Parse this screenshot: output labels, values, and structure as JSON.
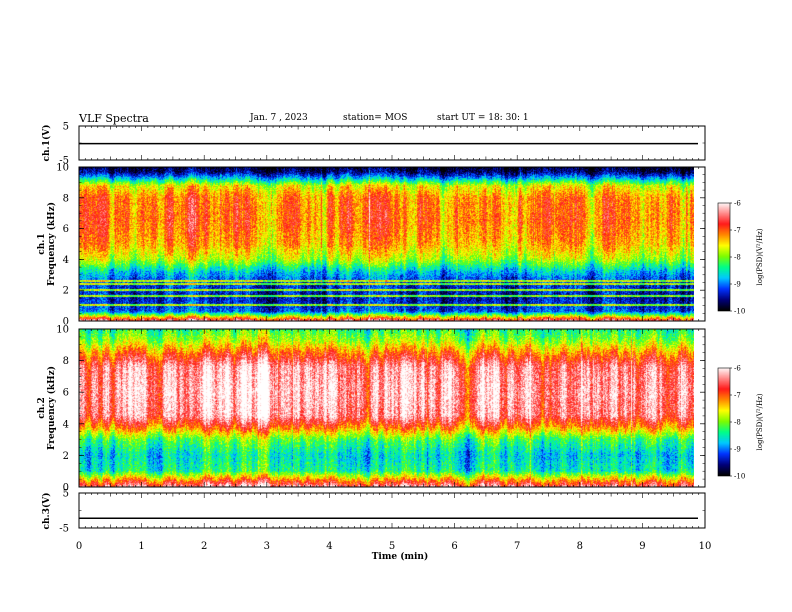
{
  "header": {
    "title": "VLF Spectra",
    "date": "Jan. 7 , 2023",
    "station": "station= MOS",
    "start_ut": "start UT =  18: 30: 1"
  },
  "colors": {
    "spectrum": [
      "#000000",
      "#00007a",
      "#0033ff",
      "#00c8ff",
      "#00ff88",
      "#7cfc00",
      "#ffff00",
      "#ff8800",
      "#ff1a1a",
      "#ff8c8c",
      "#ffffff"
    ]
  },
  "chart_data": [
    {
      "type": "line",
      "panel": "ch1-voltage",
      "ylabel": "ch.1(V)",
      "ylim": [
        -5,
        5
      ],
      "yticks": [
        "5",
        "-5"
      ],
      "x": [
        0,
        10
      ],
      "series": [
        {
          "values": [
            -0.2,
            -0.2
          ]
        }
      ]
    },
    {
      "type": "heatmap",
      "panel": "ch1-spectrogram",
      "ylabel": "ch.1  Frequency (kHz)",
      "ylim": [
        0,
        10
      ],
      "yticks": [
        "0",
        "2",
        "4",
        "6",
        "8",
        "10"
      ],
      "xlim": [
        0,
        9.83
      ],
      "colorbar": {
        "label": "log(PSD)(V²/Hz)",
        "range": [
          -10,
          -6
        ],
        "ticks": [
          "-6",
          "-7",
          "-8",
          "-9",
          "-10"
        ]
      },
      "frequency_profile": [
        {
          "f": 0.0,
          "level": 0.9
        },
        {
          "f": 0.3,
          "level": 0.55
        },
        {
          "f": 0.6,
          "level": 0.22
        },
        {
          "f": 1.5,
          "level": 0.15
        },
        {
          "f": 2.5,
          "level": 0.2
        },
        {
          "f": 3.2,
          "level": 0.32
        },
        {
          "f": 4.0,
          "level": 0.55
        },
        {
          "f": 5.0,
          "level": 0.68
        },
        {
          "f": 6.5,
          "level": 0.74
        },
        {
          "f": 8.0,
          "level": 0.72
        },
        {
          "f": 8.8,
          "level": 0.6
        },
        {
          "f": 9.3,
          "level": 0.3
        },
        {
          "f": 9.7,
          "level": 0.1
        },
        {
          "f": 10.0,
          "level": 0.05
        }
      ],
      "tones_khz": [
        1.0,
        1.6,
        2.0,
        2.4,
        2.6
      ]
    },
    {
      "type": "heatmap",
      "panel": "ch2-spectrogram",
      "ylabel": "ch.2  Frequency (kHz)",
      "ylim": [
        0,
        10
      ],
      "yticks": [
        "0",
        "2",
        "4",
        "6",
        "8",
        "10"
      ],
      "xlim": [
        0,
        9.83
      ],
      "colorbar": {
        "label": "log(PSD)(V²/Hz)",
        "range": [
          -10,
          -6
        ],
        "ticks": [
          "-6",
          "-7",
          "-8",
          "-9",
          "-10"
        ]
      },
      "frequency_profile": [
        {
          "f": 0.0,
          "level": 0.9
        },
        {
          "f": 0.4,
          "level": 0.7
        },
        {
          "f": 1.0,
          "level": 0.38
        },
        {
          "f": 2.0,
          "level": 0.33
        },
        {
          "f": 3.0,
          "level": 0.45
        },
        {
          "f": 3.8,
          "level": 0.72
        },
        {
          "f": 4.5,
          "level": 0.9
        },
        {
          "f": 6.0,
          "level": 0.93
        },
        {
          "f": 7.6,
          "level": 0.9
        },
        {
          "f": 8.5,
          "level": 0.72
        },
        {
          "f": 9.3,
          "level": 0.52
        },
        {
          "f": 10.0,
          "level": 0.42
        }
      ],
      "tones_khz": []
    },
    {
      "type": "line",
      "panel": "ch3-voltage",
      "ylabel": "ch.3(V)",
      "ylim": [
        -5,
        5
      ],
      "yticks": [
        "5",
        "-5"
      ],
      "x": [
        0,
        10
      ],
      "series": [
        {
          "values": [
            -2.2,
            -2.2
          ]
        }
      ]
    }
  ],
  "time_axis": {
    "xlabel": "Time (min)",
    "xlim": [
      0,
      10
    ],
    "ticks": [
      "0",
      "1",
      "2",
      "3",
      "4",
      "5",
      "6",
      "7",
      "8",
      "9",
      "10"
    ]
  }
}
